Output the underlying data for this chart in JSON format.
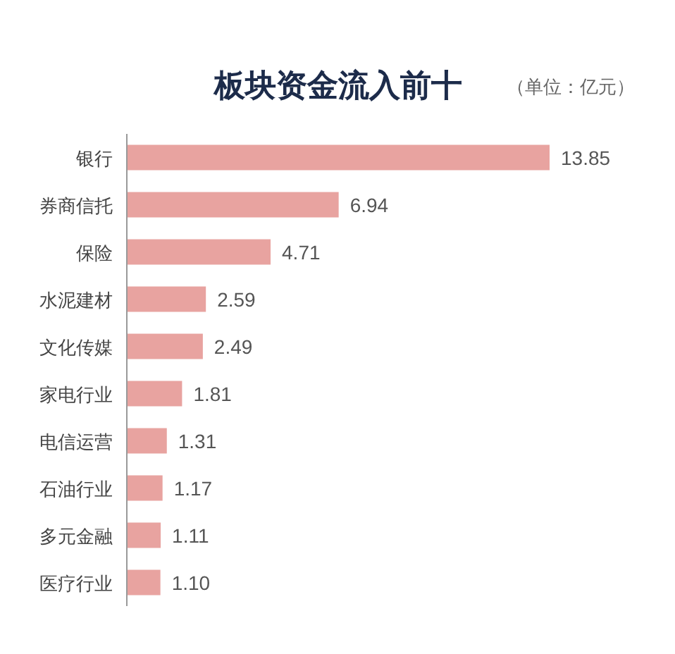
{
  "chart_data": {
    "type": "bar",
    "orientation": "horizontal",
    "title": "板块资金流入前十",
    "annotations": [
      "（单位：亿元）"
    ],
    "categories": [
      "银行",
      "券商信托",
      "保险",
      "水泥建材",
      "文化传媒",
      "家电行业",
      "电信运营",
      "石油行业",
      "多元金融",
      "医疗行业"
    ],
    "values": [
      13.85,
      6.94,
      4.71,
      2.59,
      2.49,
      1.81,
      1.31,
      1.17,
      1.11,
      1.1
    ],
    "value_labels": [
      "13.85",
      "6.94",
      "4.71",
      "2.59",
      "2.49",
      "1.81",
      "1.31",
      "1.17",
      "1.11",
      "1.10"
    ],
    "color": "#e8a3a0"
  }
}
